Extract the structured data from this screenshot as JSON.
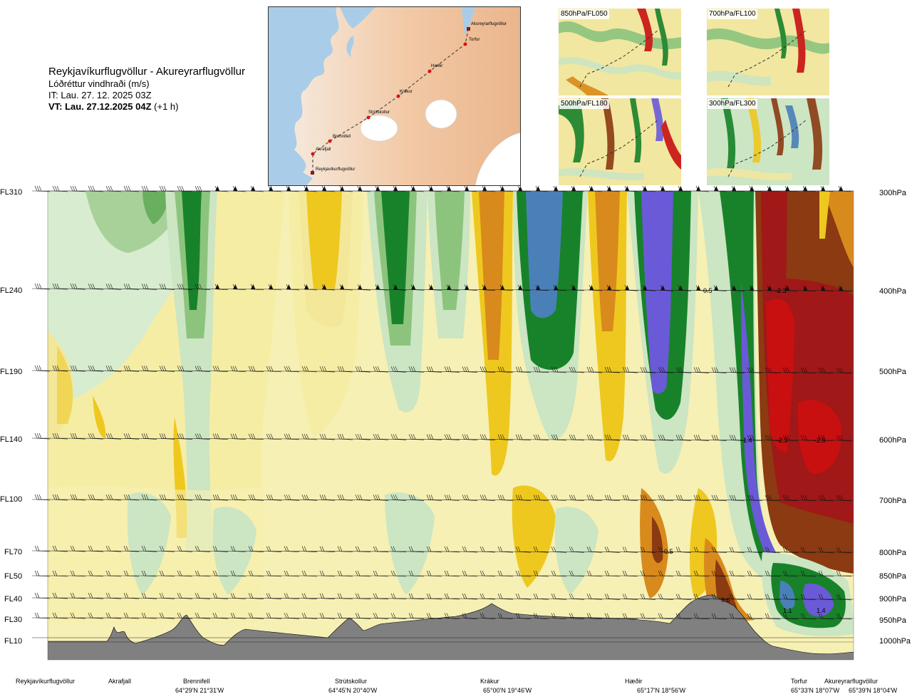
{
  "header": {
    "route_title": "Reykjavíkurflugvöllur - Akureyrarflugvöllur",
    "parameter": "Lóðréttur vindhraði (m/s)",
    "issue_time": "IT: Lau. 27. 12. 2025 03Z",
    "valid_time_bold": "VT: Lau. 27.12.2025 04Z",
    "valid_time_offset": " (+1 h)"
  },
  "route_map": {
    "waypoints": [
      "Akureyrarflugvöllur",
      "Torfur",
      "Hæðir",
      "Krákur",
      "Strútskollur",
      "Brennifell",
      "Akrafjall",
      "Reykjavíkurflugvöllur"
    ]
  },
  "thumbnails": [
    {
      "label": "850hPa/FL050"
    },
    {
      "label": "700hPa/FL100"
    },
    {
      "label": "500hPa/FL180"
    },
    {
      "label": "300hPa/FL300"
    }
  ],
  "levels": [
    {
      "fl": "FL310",
      "hpa": "300hPa"
    },
    {
      "fl": "FL240",
      "hpa": "400hPa"
    },
    {
      "fl": "FL190",
      "hpa": "500hPa"
    },
    {
      "fl": "FL140",
      "hpa": "600hPa"
    },
    {
      "fl": "FL100",
      "hpa": "700hPa"
    },
    {
      "fl": "FL70",
      "hpa": "800hPa"
    },
    {
      "fl": "FL50",
      "hpa": "850hPa"
    },
    {
      "fl": "FL40",
      "hpa": "900hPa"
    },
    {
      "fl": "FL30",
      "hpa": "950hPa"
    },
    {
      "fl": "FL10",
      "hpa": "1000hPa"
    }
  ],
  "bottom_labels": [
    {
      "name": "Reykjavíkurflugvöllur",
      "coord": ""
    },
    {
      "name": "Akrafjall",
      "coord": ""
    },
    {
      "name": "Brennifell",
      "coord": "64°29'N 21°31'W"
    },
    {
      "name": "Strútskollur",
      "coord": "64°45'N 20°40'W"
    },
    {
      "name": "Krákur",
      "coord": "65°00'N 19°46'W"
    },
    {
      "name": "Hæðir",
      "coord": "65°17'N 18°56'W"
    },
    {
      "name": "Torfur",
      "coord": "65°33'N 18°07'W"
    },
    {
      "name": "Akureyrarflugvöllur",
      "coord": "65°39'N 18°04'W"
    }
  ],
  "chart_data": {
    "type": "heatmap",
    "title": "Reykjavíkurflugvöllur - Akureyrarflugvöllur",
    "subtitle": "Lóðréttur vindhraði (m/s)",
    "x_waypoints": [
      "Reykjavíkurflugvöllur",
      "Akrafjall",
      "Brennifell",
      "Strútskollur",
      "Krákur",
      "Hæðir",
      "Torfur",
      "Akureyrarflugvöllur"
    ],
    "y_flight_levels": [
      "FL310",
      "FL240",
      "FL190",
      "FL140",
      "FL100",
      "FL70",
      "FL50",
      "FL40",
      "FL30",
      "FL10"
    ],
    "y_pressure": [
      "300hPa",
      "400hPa",
      "500hPa",
      "600hPa",
      "700hPa",
      "800hPa",
      "850hPa",
      "900hPa",
      "950hPa",
      "1000hPa"
    ],
    "contour_labels": [
      "0.5",
      "-2.3",
      "1.4",
      "-2.3",
      "-2.5",
      "-0.5",
      "0.6",
      "1.1",
      "1.4"
    ],
    "colors": {
      "strong_down": "#8b3a12",
      "down_red": "#c81010",
      "down_orange": "#d98a1c",
      "down_yellow": "#eec81e",
      "weak_down": "#f3e79a",
      "weak_up": "#cce5c3",
      "up_green": "#8cc47e",
      "up_dark_green": "#18822a",
      "up_blue": "#4a80b8",
      "up_purple": "#6a5ad8",
      "terrain": "#808080"
    }
  }
}
